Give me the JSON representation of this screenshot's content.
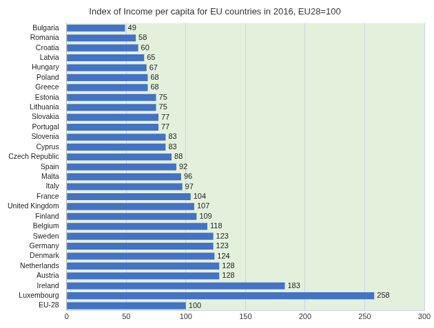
{
  "chart_data": {
    "type": "bar",
    "orientation": "horizontal",
    "title": "Index of Income per capita for EU countries in 2016, EU28=100",
    "categories": [
      "Bulgaria",
      "Romania",
      "Croatia",
      "Latvia",
      "Hungary",
      "Poland",
      "Greece",
      "Estonia",
      "Lithuania",
      "Slovakia",
      "Portugal",
      "Slovenia",
      "Cyprus",
      "Czech Republic",
      "Spain",
      "Malta",
      "Italy",
      "France",
      "United Kingdom",
      "Finland",
      "Belgium",
      "Sweden",
      "Germany",
      "Denmark",
      "Netherlands",
      "Austria",
      "Ireland",
      "Luxembourg",
      "EU-28"
    ],
    "values": [
      49,
      58,
      60,
      65,
      67,
      68,
      68,
      75,
      75,
      77,
      77,
      83,
      83,
      88,
      92,
      96,
      97,
      104,
      107,
      109,
      118,
      123,
      123,
      124,
      128,
      128,
      183,
      258,
      100
    ],
    "color": "#4472c4",
    "xlim": [
      0,
      300
    ],
    "xticks": [
      0,
      50,
      100,
      150,
      200,
      250,
      300
    ],
    "grid": true,
    "data_labels": true
  }
}
